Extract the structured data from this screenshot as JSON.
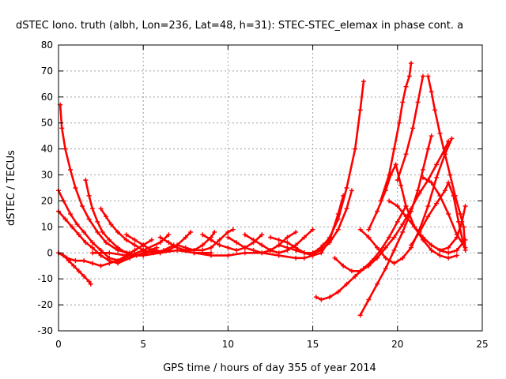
{
  "chart_data": {
    "type": "scatter",
    "title": "dSTEC Iono. truth (albh, Lon=236, Lat=48, h=31): STEC-STEC_elemax in phase cont. a",
    "xlabel": "GPS time / hours of day 355 of year 2014",
    "ylabel": "dSTEC  / TECUs",
    "xlim": [
      0,
      25
    ],
    "ylim": [
      -30,
      80
    ],
    "xticks": [
      0,
      5,
      10,
      15,
      20,
      25
    ],
    "yticks": [
      -30,
      -20,
      -10,
      0,
      10,
      20,
      30,
      40,
      50,
      60,
      70,
      80
    ],
    "grid": true,
    "marker": "plus",
    "color": "#ff0000",
    "series": [
      {
        "points": [
          [
            0.1,
            57
          ],
          [
            0.2,
            48
          ],
          [
            0.4,
            40
          ],
          [
            0.7,
            32
          ],
          [
            1.0,
            25
          ],
          [
            1.4,
            18
          ],
          [
            1.8,
            13
          ],
          [
            2.3,
            8
          ],
          [
            2.8,
            4
          ],
          [
            3.5,
            1
          ],
          [
            4.2,
            0
          ]
        ]
      },
      {
        "points": [
          [
            0.0,
            24
          ],
          [
            0.3,
            20
          ],
          [
            0.7,
            15
          ],
          [
            1.1,
            11
          ],
          [
            1.5,
            8
          ],
          [
            2.0,
            4
          ],
          [
            2.5,
            1
          ],
          [
            3.0,
            -2
          ],
          [
            3.6,
            -3
          ],
          [
            4.2,
            -1
          ],
          [
            5.0,
            1
          ],
          [
            6.0,
            4
          ],
          [
            6.5,
            7
          ]
        ]
      },
      {
        "points": [
          [
            0.0,
            16
          ],
          [
            0.4,
            13
          ],
          [
            0.8,
            10
          ],
          [
            1.2,
            7
          ],
          [
            1.6,
            4
          ],
          [
            2.0,
            2
          ],
          [
            2.5,
            -1
          ],
          [
            3.0,
            -3
          ],
          [
            3.5,
            -4
          ],
          [
            4.2,
            -2
          ],
          [
            5.0,
            0
          ],
          [
            5.8,
            2
          ]
        ]
      },
      {
        "points": [
          [
            0.0,
            0
          ],
          [
            0.3,
            -1
          ],
          [
            0.6,
            -3
          ],
          [
            0.9,
            -5
          ],
          [
            1.2,
            -7
          ],
          [
            1.5,
            -9
          ],
          [
            1.8,
            -11
          ],
          [
            1.9,
            -12
          ]
        ]
      },
      {
        "points": [
          [
            0.0,
            0
          ],
          [
            0.5,
            -2
          ],
          [
            1.0,
            -3
          ],
          [
            1.5,
            -3
          ],
          [
            2.0,
            -4
          ],
          [
            2.5,
            -5
          ],
          [
            3.0,
            -4
          ],
          [
            3.5,
            -3
          ],
          [
            4.0,
            -1
          ],
          [
            4.5,
            1
          ],
          [
            5.0,
            3
          ],
          [
            5.5,
            5
          ]
        ]
      },
      {
        "points": [
          [
            1.6,
            28
          ],
          [
            1.8,
            22
          ],
          [
            2.0,
            17
          ],
          [
            2.3,
            12
          ],
          [
            2.6,
            8
          ],
          [
            3.0,
            5
          ],
          [
            3.5,
            2
          ],
          [
            4.0,
            0
          ],
          [
            4.6,
            -1
          ],
          [
            5.2,
            0
          ],
          [
            5.8,
            1
          ]
        ]
      },
      {
        "points": [
          [
            2.5,
            17
          ],
          [
            2.8,
            14
          ],
          [
            3.1,
            11
          ],
          [
            3.5,
            8
          ],
          [
            4.0,
            5
          ],
          [
            4.5,
            3
          ],
          [
            5.0,
            1
          ],
          [
            5.6,
            0
          ],
          [
            6.2,
            1
          ],
          [
            6.8,
            3
          ]
        ]
      },
      {
        "points": [
          [
            4.0,
            7
          ],
          [
            4.5,
            5
          ],
          [
            5.0,
            3
          ],
          [
            5.5,
            1
          ],
          [
            6.0,
            0
          ],
          [
            6.5,
            1
          ],
          [
            7.0,
            3
          ],
          [
            7.5,
            6
          ],
          [
            7.8,
            8
          ]
        ]
      },
      {
        "points": [
          [
            6.0,
            6
          ],
          [
            6.5,
            4
          ],
          [
            7.0,
            2
          ],
          [
            7.5,
            1
          ],
          [
            8.0,
            1
          ],
          [
            8.5,
            3
          ],
          [
            9.0,
            6
          ],
          [
            9.2,
            8
          ]
        ]
      },
      {
        "points": [
          [
            7.0,
            3
          ],
          [
            7.5,
            2
          ],
          [
            8.0,
            1
          ],
          [
            8.5,
            1
          ],
          [
            9.0,
            2
          ],
          [
            9.5,
            5
          ],
          [
            10.0,
            8
          ],
          [
            10.3,
            9
          ]
        ]
      },
      {
        "points": [
          [
            8.5,
            7
          ],
          [
            9.0,
            5
          ],
          [
            9.5,
            3
          ],
          [
            10.0,
            2
          ],
          [
            10.5,
            1
          ],
          [
            11.0,
            2
          ],
          [
            11.5,
            4
          ],
          [
            12.0,
            7
          ]
        ]
      },
      {
        "points": [
          [
            10.0,
            6
          ],
          [
            10.5,
            4
          ],
          [
            11.0,
            2
          ],
          [
            11.5,
            1
          ],
          [
            12.0,
            0
          ],
          [
            12.5,
            1
          ],
          [
            13.0,
            3
          ],
          [
            13.5,
            6
          ],
          [
            14.0,
            8
          ]
        ]
      },
      {
        "points": [
          [
            11.0,
            7
          ],
          [
            11.5,
            5
          ],
          [
            12.0,
            3
          ],
          [
            12.5,
            1
          ],
          [
            13.0,
            0
          ],
          [
            13.5,
            1
          ],
          [
            14.0,
            3
          ],
          [
            14.5,
            6
          ],
          [
            15.0,
            9
          ]
        ]
      },
      {
        "points": [
          [
            8.0,
            0
          ],
          [
            9.0,
            -1
          ],
          [
            10.0,
            -1
          ],
          [
            11.0,
            0
          ],
          [
            12.0,
            0
          ],
          [
            13.0,
            -1
          ],
          [
            14.0,
            -2
          ],
          [
            14.5,
            -2
          ],
          [
            15.0,
            -1
          ],
          [
            15.3,
            1
          ],
          [
            15.6,
            3
          ]
        ]
      },
      {
        "points": [
          [
            2.0,
            0
          ],
          [
            3.0,
            0
          ],
          [
            4.0,
            -1
          ],
          [
            5.0,
            -1
          ],
          [
            6.0,
            0
          ],
          [
            7.0,
            1
          ],
          [
            8.0,
            0
          ],
          [
            9.0,
            0
          ]
        ]
      },
      {
        "points": [
          [
            12.5,
            6
          ],
          [
            13.0,
            5
          ],
          [
            13.5,
            4
          ],
          [
            14.0,
            2
          ],
          [
            14.5,
            0
          ],
          [
            15.0,
            -1
          ],
          [
            15.5,
            0
          ],
          [
            16.0,
            5
          ],
          [
            16.5,
            15
          ],
          [
            16.8,
            22
          ]
        ]
      },
      {
        "points": [
          [
            13.0,
            3
          ],
          [
            13.5,
            2
          ],
          [
            14.0,
            1
          ],
          [
            14.5,
            0
          ],
          [
            15.0,
            0
          ],
          [
            15.5,
            1
          ],
          [
            16.0,
            4
          ],
          [
            16.5,
            9
          ],
          [
            17.0,
            17
          ],
          [
            17.3,
            24
          ]
        ]
      },
      {
        "points": [
          [
            14.0,
            1
          ],
          [
            14.5,
            0
          ],
          [
            15.0,
            0
          ],
          [
            15.5,
            2
          ],
          [
            16.0,
            6
          ],
          [
            16.5,
            13
          ],
          [
            17.0,
            25
          ],
          [
            17.5,
            40
          ],
          [
            17.8,
            55
          ],
          [
            18.0,
            66
          ]
        ]
      },
      {
        "points": [
          [
            15.2,
            -17
          ],
          [
            15.5,
            -18
          ],
          [
            16.0,
            -17
          ],
          [
            16.5,
            -15
          ],
          [
            17.0,
            -12
          ],
          [
            17.5,
            -9
          ],
          [
            18.0,
            -6
          ],
          [
            18.5,
            -3
          ],
          [
            19.0,
            1
          ],
          [
            19.5,
            6
          ],
          [
            20.0,
            12
          ],
          [
            20.5,
            18
          ]
        ]
      },
      {
        "points": [
          [
            16.3,
            -2
          ],
          [
            16.8,
            -5
          ],
          [
            17.3,
            -7
          ],
          [
            17.8,
            -7
          ],
          [
            18.3,
            -5
          ],
          [
            18.8,
            -2
          ],
          [
            19.3,
            2
          ],
          [
            19.8,
            6
          ],
          [
            20.3,
            11
          ],
          [
            20.8,
            17
          ],
          [
            21.3,
            23
          ],
          [
            21.8,
            28
          ],
          [
            22.3,
            34
          ],
          [
            22.8,
            40
          ],
          [
            23.0,
            43
          ]
        ]
      },
      {
        "points": [
          [
            17.8,
            -24
          ],
          [
            18.3,
            -18
          ],
          [
            18.8,
            -12
          ],
          [
            19.3,
            -6
          ],
          [
            19.8,
            1
          ],
          [
            20.3,
            8
          ],
          [
            20.8,
            16
          ],
          [
            21.2,
            24
          ],
          [
            21.5,
            32
          ],
          [
            21.8,
            40
          ],
          [
            22.0,
            45
          ]
        ]
      },
      {
        "points": [
          [
            17.8,
            9
          ],
          [
            18.3,
            6
          ],
          [
            18.8,
            2
          ],
          [
            19.3,
            -2
          ],
          [
            19.8,
            -4
          ],
          [
            20.3,
            -2
          ],
          [
            20.8,
            2
          ],
          [
            21.3,
            9
          ],
          [
            21.8,
            18
          ],
          [
            22.3,
            29
          ],
          [
            22.8,
            38
          ],
          [
            23.2,
            44
          ]
        ]
      },
      {
        "points": [
          [
            18.3,
            9
          ],
          [
            18.8,
            16
          ],
          [
            19.3,
            24
          ],
          [
            19.6,
            30
          ],
          [
            19.9,
            34
          ],
          [
            20.2,
            26
          ],
          [
            20.5,
            18
          ],
          [
            21.0,
            10
          ],
          [
            21.5,
            5
          ],
          [
            22.0,
            1
          ],
          [
            22.5,
            -1
          ],
          [
            23.0,
            -2
          ],
          [
            23.5,
            -1
          ]
        ]
      },
      {
        "points": [
          [
            19.0,
            20
          ],
          [
            19.5,
            30
          ],
          [
            19.8,
            40
          ],
          [
            20.1,
            50
          ],
          [
            20.3,
            58
          ],
          [
            20.5,
            64
          ],
          [
            20.7,
            68
          ],
          [
            20.8,
            73
          ]
        ]
      },
      {
        "points": [
          [
            19.5,
            20
          ],
          [
            20.0,
            18
          ],
          [
            20.5,
            14
          ],
          [
            21.0,
            10
          ],
          [
            21.5,
            6
          ],
          [
            22.0,
            3
          ],
          [
            22.5,
            1
          ],
          [
            23.0,
            0
          ],
          [
            23.5,
            1
          ],
          [
            24.0,
            5
          ]
        ]
      },
      {
        "points": [
          [
            20.0,
            28
          ],
          [
            20.5,
            38
          ],
          [
            20.9,
            48
          ],
          [
            21.2,
            58
          ],
          [
            21.5,
            68
          ]
        ]
      },
      {
        "points": [
          [
            21.8,
            68
          ],
          [
            22.0,
            62
          ],
          [
            22.2,
            55
          ],
          [
            22.5,
            46
          ],
          [
            22.8,
            38
          ],
          [
            23.1,
            30
          ],
          [
            23.4,
            22
          ],
          [
            23.7,
            15
          ],
          [
            23.9,
            10
          ],
          [
            24.0,
            1
          ]
        ]
      },
      {
        "points": [
          [
            20.8,
            3
          ],
          [
            21.3,
            8
          ],
          [
            21.8,
            14
          ],
          [
            22.3,
            19
          ],
          [
            22.8,
            24
          ],
          [
            23.0,
            27
          ],
          [
            23.3,
            22
          ],
          [
            23.6,
            12
          ],
          [
            23.9,
            3
          ]
        ]
      },
      {
        "points": [
          [
            21.5,
            29
          ],
          [
            22.0,
            27
          ],
          [
            22.5,
            22
          ],
          [
            23.0,
            15
          ],
          [
            23.5,
            7
          ],
          [
            24.0,
            2
          ]
        ]
      },
      {
        "points": [
          [
            22.5,
            1
          ],
          [
            23.0,
            2
          ],
          [
            23.5,
            6
          ],
          [
            23.8,
            12
          ],
          [
            24.0,
            18
          ]
        ]
      }
    ]
  }
}
